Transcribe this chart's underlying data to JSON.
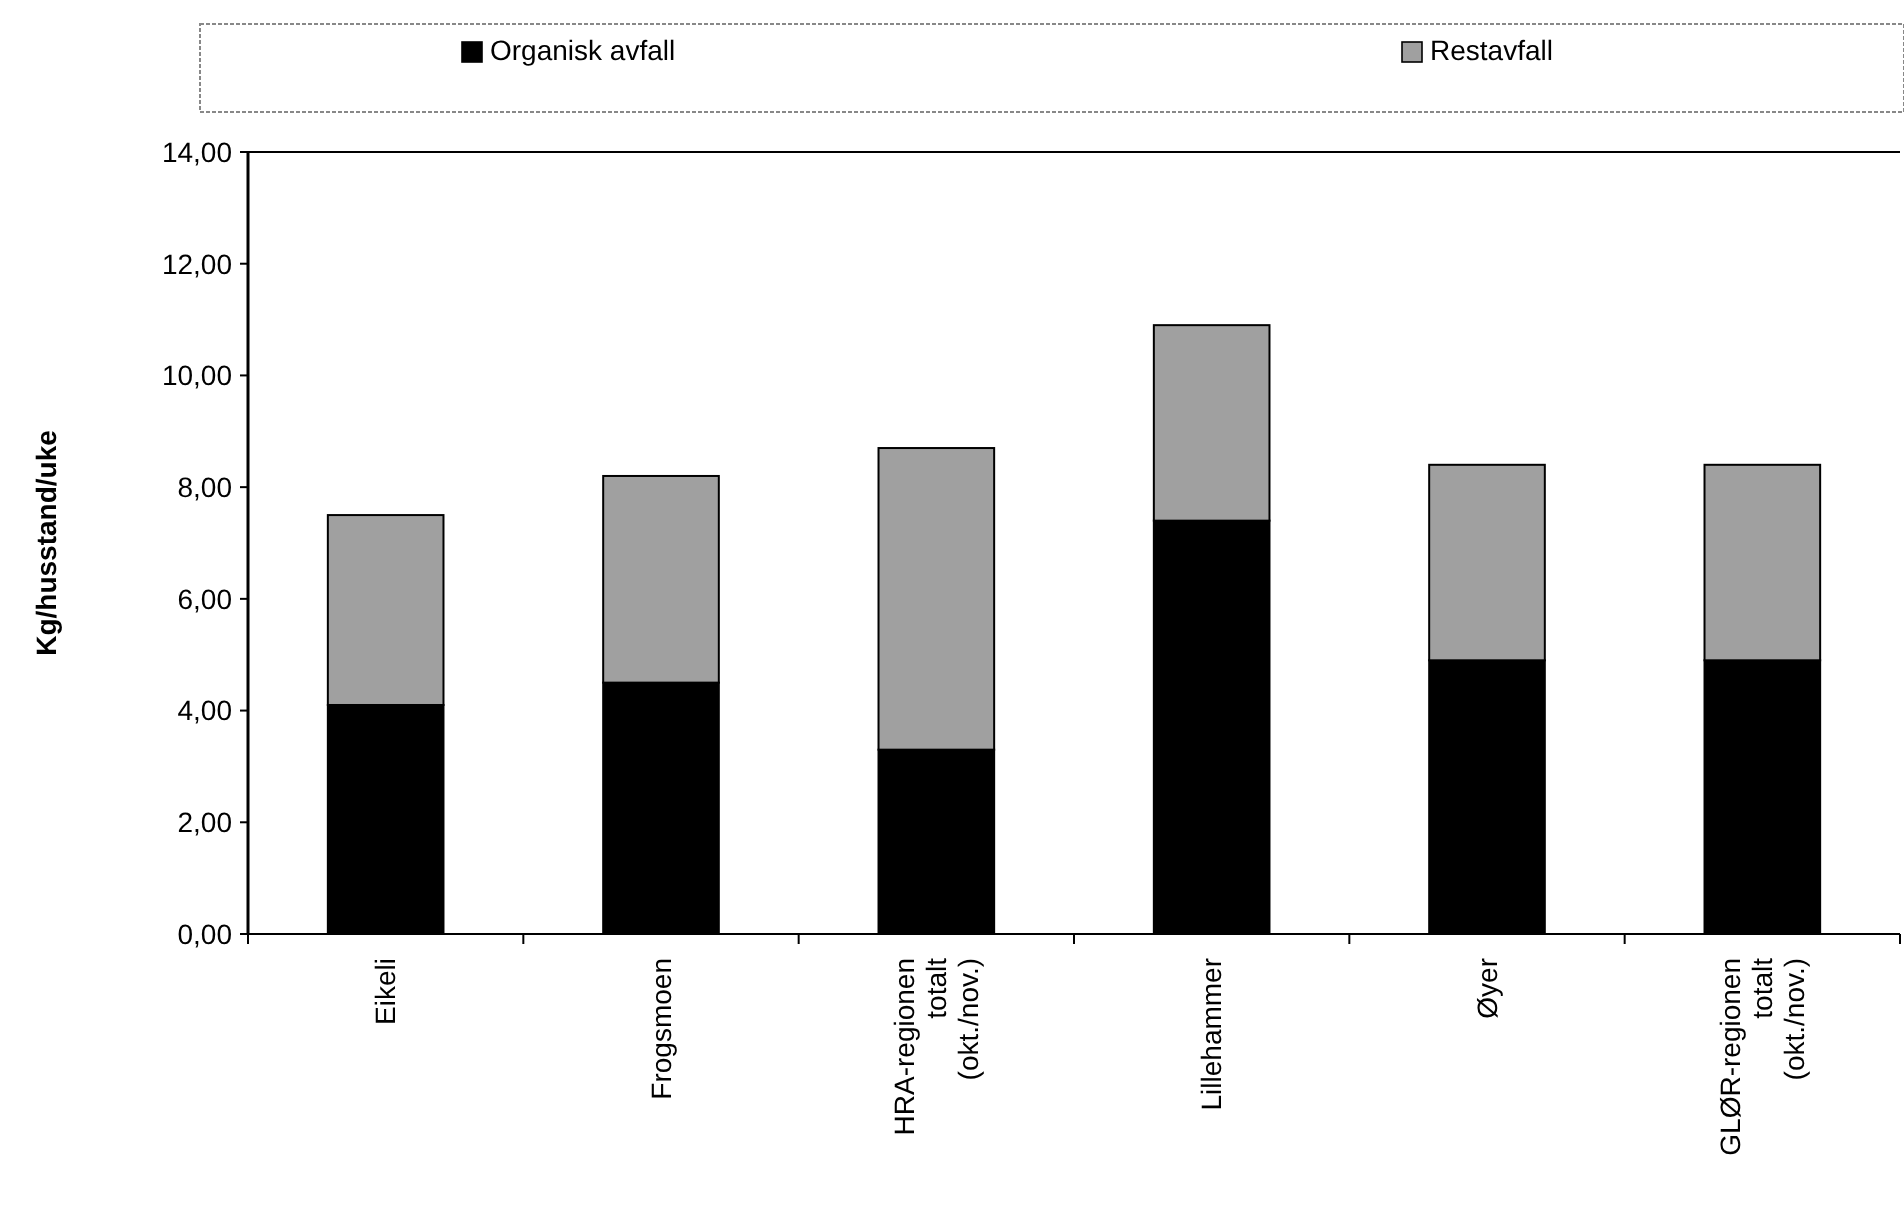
{
  "chart_data": {
    "type": "bar",
    "stacked": true,
    "ylabel": "Kg/husstand/uke",
    "categories": [
      "Eikeli",
      "Frogsmoen",
      "HRA-regionen totalt (okt./nov.)",
      "Lillehammer",
      "Øyer",
      "GLØR-regionen totalt (okt./nov.)"
    ],
    "series": [
      {
        "name": "Organisk avfall",
        "color": "#000000",
        "values": [
          4.1,
          4.5,
          3.3,
          7.4,
          4.9,
          4.9
        ]
      },
      {
        "name": "Restavfall",
        "color": "#a0a0a0",
        "values": [
          3.4,
          3.7,
          5.4,
          3.5,
          3.5,
          3.5
        ]
      }
    ],
    "ylim": [
      0,
      14
    ],
    "yticks": [
      {
        "value": 0,
        "label": "0,00"
      },
      {
        "value": 2,
        "label": "2,00"
      },
      {
        "value": 4,
        "label": "4,00"
      },
      {
        "value": 6,
        "label": "6,00"
      },
      {
        "value": 8,
        "label": "8,00"
      },
      {
        "value": 10,
        "label": "10,00"
      },
      {
        "value": 12,
        "label": "12,00"
      },
      {
        "value": 14,
        "label": "14,00"
      }
    ],
    "grid": false,
    "legend": "top"
  }
}
